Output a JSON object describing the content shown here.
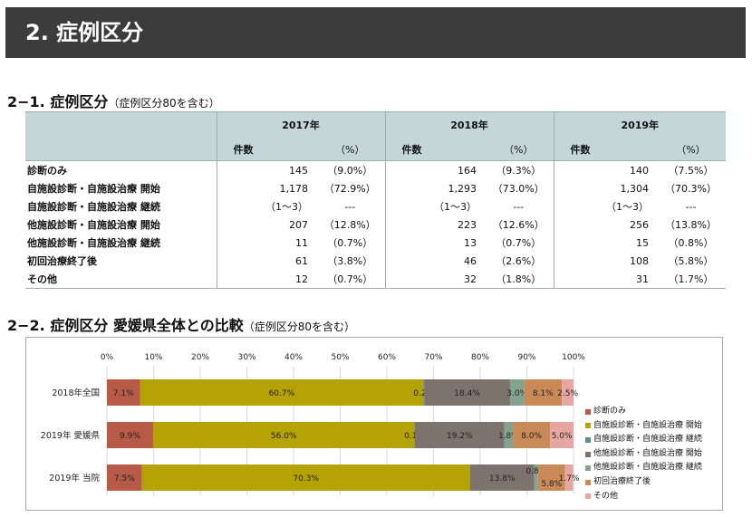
{
  "banner": {
    "title": "2.  症例区分"
  },
  "section1": {
    "title": "2−1.  症例区分",
    "note": "（症例区分80を含む）"
  },
  "table": {
    "years": [
      "2017年",
      "2018年",
      "2019年"
    ],
    "count_label": "件数",
    "pct_label": "（%）",
    "rows": [
      {
        "label": "診断のみ",
        "cells": [
          [
            "145",
            "（9.0%）"
          ],
          [
            "164",
            "（9.3%）"
          ],
          [
            "140",
            "（7.5%）"
          ]
        ]
      },
      {
        "label": "自施設診断・自施設治療 開始",
        "cells": [
          [
            "1,178",
            "（72.9%）"
          ],
          [
            "1,293",
            "（73.0%）"
          ],
          [
            "1,304",
            "（70.3%）"
          ]
        ]
      },
      {
        "label": "自施設診断・自施設治療 継続",
        "cells": [
          [
            "（1〜3）",
            "---"
          ],
          [
            "（1〜3）",
            "---"
          ],
          [
            "（1〜3）",
            "---"
          ]
        ]
      },
      {
        "label": "他施設診断・自施設治療 開始",
        "cells": [
          [
            "207",
            "（12.8%）"
          ],
          [
            "223",
            "（12.6%）"
          ],
          [
            "256",
            "（13.8%）"
          ]
        ]
      },
      {
        "label": "他施設診断・自施設治療 継続",
        "cells": [
          [
            "11",
            "（0.7%）"
          ],
          [
            "13",
            "（0.7%）"
          ],
          [
            "15",
            "（0.8%）"
          ]
        ]
      },
      {
        "label": "初回治療終了後",
        "cells": [
          [
            "61",
            "（3.8%）"
          ],
          [
            "46",
            "（2.6%）"
          ],
          [
            "108",
            "（5.8%）"
          ]
        ]
      },
      {
        "label": "その他",
        "cells": [
          [
            "12",
            "（0.7%）"
          ],
          [
            "32",
            "（1.8%）"
          ],
          [
            "31",
            "（1.7%）"
          ]
        ]
      }
    ]
  },
  "section2": {
    "title": "2−2.  症例区分  愛媛県全体との比較",
    "note": "（症例区分80を含む）"
  },
  "chart_data": {
    "type": "bar",
    "orientation": "horizontal-stacked-100",
    "categories": [
      "2018年全国",
      "2019年 愛媛県",
      "2019年 当院"
    ],
    "x_ticks": [
      "0%",
      "10%",
      "20%",
      "30%",
      "40%",
      "50%",
      "60%",
      "70%",
      "80%",
      "90%",
      "100%"
    ],
    "xlim": [
      0,
      100
    ],
    "legend_position": "right",
    "series": [
      {
        "name": "診断のみ",
        "color": "#b85a48",
        "values": [
          7.1,
          9.9,
          7.5
        ],
        "labels": [
          "7.1%",
          "9.9%",
          "7.5%"
        ]
      },
      {
        "name": "自施設診断・自施設治療 開始",
        "color": "#b5a205",
        "values": [
          60.7,
          56.0,
          70.3
        ],
        "labels": [
          "60.7%",
          "56.0%",
          "70.3%"
        ]
      },
      {
        "name": "自施設診断・自施設治療 継続",
        "color": "#5f8b89",
        "values": [
          0.2,
          0.1,
          0.0
        ],
        "labels": [
          "0.2%",
          "0.1%",
          ""
        ]
      },
      {
        "name": "他施設診断・自施設治療 開始",
        "color": "#7e736c",
        "values": [
          18.4,
          19.2,
          13.8
        ],
        "labels": [
          "18.4%",
          "19.2%",
          "13.8%"
        ]
      },
      {
        "name": "他施設診断・自施設治療 継続",
        "color": "#82a48f",
        "values": [
          3.0,
          1.8,
          0.8
        ],
        "labels": [
          "3.0%",
          "1.8%",
          "0.8%"
        ]
      },
      {
        "name": "初回治療終了後",
        "color": "#c98a58",
        "values": [
          8.1,
          8.0,
          5.8
        ],
        "labels": [
          "8.1%",
          "8.0%",
          "5.8%"
        ]
      },
      {
        "name": "その他",
        "color": "#e6a7a3",
        "values": [
          2.5,
          5.0,
          1.7
        ],
        "labels": [
          "2.5%",
          "5.0%",
          "1.7%"
        ]
      }
    ]
  }
}
